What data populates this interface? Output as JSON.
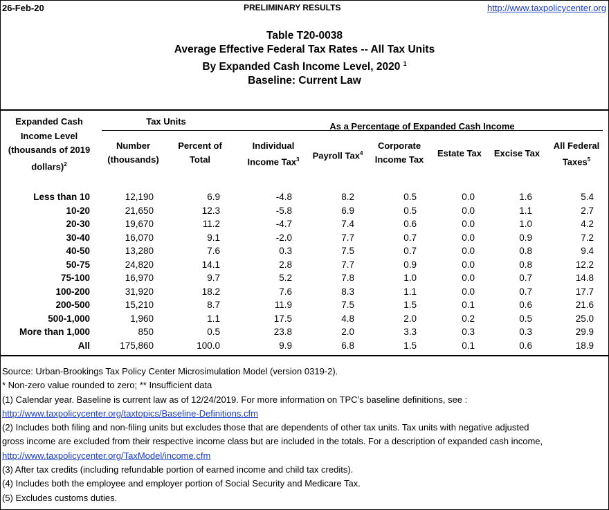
{
  "header": {
    "date": "26-Feb-20",
    "status": "PRELIMINARY RESULTS",
    "url": "http://www.taxpolicycenter.org"
  },
  "titles": {
    "table_id": "Table T20-0038",
    "line2": "Average Effective Federal Tax Rates -- All Tax Units",
    "line3": "By Expanded Cash Income Level, 2020",
    "line3_sup": "1",
    "line4": "Baseline: Current Law"
  },
  "columns": {
    "income_level_l1": "Expanded Cash",
    "income_level_l2": "Income Level",
    "income_level_l3": "(thousands of 2019",
    "income_level_l4": "dollars)",
    "income_level_sup": "2",
    "tax_units_group": "Tax Units",
    "pct_group": "As a Percentage of Expanded Cash Income",
    "number_l1": "Number",
    "number_l2": "(thousands)",
    "percent_l1": "Percent of",
    "percent_l2": "Total",
    "individual_l1": "Individual",
    "individual_l2": "Income Tax",
    "individual_sup": "3",
    "payroll": "Payroll Tax",
    "payroll_sup": "4",
    "corporate_l1": "Corporate",
    "corporate_l2": "Income Tax",
    "estate": "Estate Tax",
    "excise": "Excise Tax",
    "allfed_l1": "All Federal",
    "allfed_l2": "Taxes",
    "allfed_sup": "5"
  },
  "rows": [
    {
      "level": "Less than 10",
      "number": "12,190",
      "percent": "6.9",
      "individual": "-4.8",
      "payroll": "8.2",
      "corporate": "0.5",
      "estate": "0.0",
      "excise": "1.6",
      "all": "5.4"
    },
    {
      "level": "10-20",
      "number": "21,650",
      "percent": "12.3",
      "individual": "-5.8",
      "payroll": "6.9",
      "corporate": "0.5",
      "estate": "0.0",
      "excise": "1.1",
      "all": "2.7"
    },
    {
      "level": "20-30",
      "number": "19,670",
      "percent": "11.2",
      "individual": "-4.7",
      "payroll": "7.4",
      "corporate": "0.6",
      "estate": "0.0",
      "excise": "1.0",
      "all": "4.2"
    },
    {
      "level": "30-40",
      "number": "16,070",
      "percent": "9.1",
      "individual": "-2.0",
      "payroll": "7.7",
      "corporate": "0.7",
      "estate": "0.0",
      "excise": "0.9",
      "all": "7.2"
    },
    {
      "level": "40-50",
      "number": "13,280",
      "percent": "7.6",
      "individual": "0.3",
      "payroll": "7.5",
      "corporate": "0.7",
      "estate": "0.0",
      "excise": "0.8",
      "all": "9.4"
    },
    {
      "level": "50-75",
      "number": "24,820",
      "percent": "14.1",
      "individual": "2.8",
      "payroll": "7.7",
      "corporate": "0.9",
      "estate": "0.0",
      "excise": "0.8",
      "all": "12.2"
    },
    {
      "level": "75-100",
      "number": "16,970",
      "percent": "9.7",
      "individual": "5.2",
      "payroll": "7.8",
      "corporate": "1.0",
      "estate": "0.0",
      "excise": "0.7",
      "all": "14.8"
    },
    {
      "level": "100-200",
      "number": "31,920",
      "percent": "18.2",
      "individual": "7.6",
      "payroll": "8.3",
      "corporate": "1.1",
      "estate": "0.0",
      "excise": "0.7",
      "all": "17.7"
    },
    {
      "level": "200-500",
      "number": "15,210",
      "percent": "8.7",
      "individual": "11.9",
      "payroll": "7.5",
      "corporate": "1.5",
      "estate": "0.1",
      "excise": "0.6",
      "all": "21.6"
    },
    {
      "level": "500-1,000",
      "number": "1,960",
      "percent": "1.1",
      "individual": "17.5",
      "payroll": "4.8",
      "corporate": "2.0",
      "estate": "0.2",
      "excise": "0.5",
      "all": "25.0"
    },
    {
      "level": "More than 1,000",
      "number": "850",
      "percent": "0.5",
      "individual": "23.8",
      "payroll": "2.0",
      "corporate": "3.3",
      "estate": "0.3",
      "excise": "0.3",
      "all": "29.9"
    },
    {
      "level": "All",
      "number": "175,860",
      "percent": "100.0",
      "individual": "9.9",
      "payroll": "6.8",
      "corporate": "1.5",
      "estate": "0.1",
      "excise": "0.6",
      "all": "18.9"
    }
  ],
  "notes": {
    "source": "Source: Urban-Brookings Tax Policy Center Microsimulation Model (version 0319-2).",
    "star": "* Non-zero value rounded to zero; ** Insufficient data",
    "n1": "(1) Calendar year. Baseline is current law as of 12/24/2019. For more information on TPC’s baseline definitions, see :",
    "n1_link": "http://www.taxpolicycenter.org/taxtopics/Baseline-Definitions.cfm",
    "n2a": "(2) Includes both filing and non-filing units but excludes those that are dependents of other tax units. Tax units with negative adjusted",
    "n2b": "gross income are excluded from their respective income class but are included in the totals. For a description of expanded cash income,",
    "n2_link": "http://www.taxpolicycenter.org/TaxModel/income.cfm",
    "n3": "(3) After tax credits (including refundable portion of earned income and child tax credits).",
    "n4": "(4) Includes both the employee and employer portion of Social Security and Medicare Tax.",
    "n5": "(5) Excludes customs duties."
  }
}
